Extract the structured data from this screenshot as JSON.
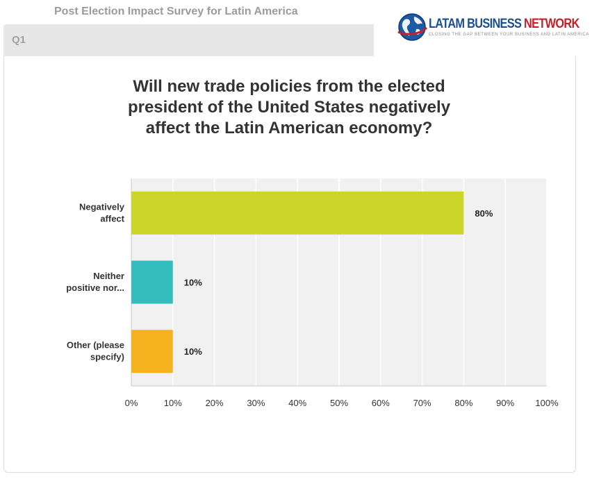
{
  "survey": {
    "title": "Post Election Impact Survey for Latin America"
  },
  "question_header": {
    "label": "Q1"
  },
  "logo": {
    "word1": "LATAM BUSINESS ",
    "word2": "NETWORK",
    "tagline": "CLOSING THE GAP BETWEEN YOUR BUSINESS AND LATIN AMERICA",
    "colors": {
      "blue": "#1c4f8f",
      "red": "#c6202a"
    }
  },
  "question": {
    "lines": [
      "Will new trade policies from the elected",
      "president of the United States negatively",
      "affect the Latin American economy?"
    ]
  },
  "chart_data": {
    "type": "bar",
    "orientation": "horizontal",
    "categories": [
      [
        "Negatively",
        "affect"
      ],
      [
        "Neither",
        "positive nor..."
      ],
      [
        "Other (please",
        "specify)"
      ]
    ],
    "values": [
      80,
      10,
      10
    ],
    "value_labels": [
      "80%",
      "10%",
      "10%"
    ],
    "colors": [
      "#ccd52a",
      "#35bdbd",
      "#f6b11f"
    ],
    "xlim": [
      0,
      100
    ],
    "ticks": [
      "0%",
      "10%",
      "20%",
      "30%",
      "40%",
      "50%",
      "60%",
      "70%",
      "80%",
      "90%",
      "100%"
    ],
    "grid": true,
    "title": "",
    "xlabel": "",
    "ylabel": ""
  }
}
